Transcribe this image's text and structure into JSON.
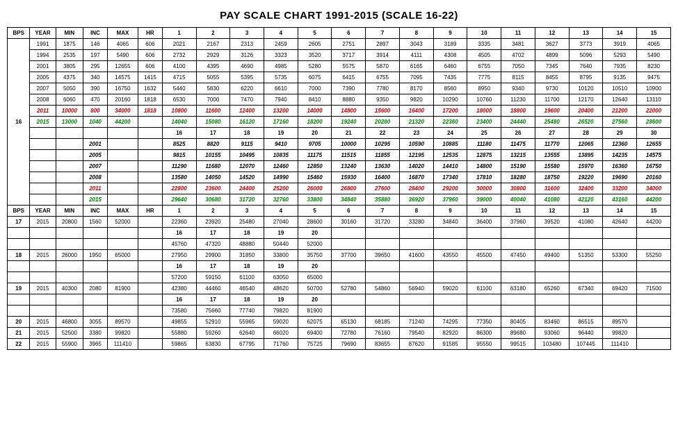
{
  "title": "PAY SCALE CHART  1991-2015   (SCALE 16-22)",
  "headers": [
    "BPS",
    "YEAR",
    "MIN",
    "INC",
    "MAX",
    "HR",
    "1",
    "2",
    "3",
    "4",
    "5",
    "6",
    "7",
    "8",
    "9",
    "10",
    "11",
    "12",
    "13",
    "14",
    "15"
  ],
  "sections": [
    {
      "bps": "16",
      "rowspan": 13,
      "rows": [
        {
          "cells": [
            "1991",
            "1875",
            "146",
            "4065",
            "606",
            "2021",
            "2167",
            "2313",
            "2459",
            "2605",
            "2751",
            "2897",
            "3043",
            "3189",
            "3335",
            "3481",
            "3627",
            "3773",
            "3919",
            "4065"
          ]
        },
        {
          "cells": [
            "1994",
            "2535",
            "197",
            "5490",
            "606",
            "2732",
            "2929",
            "3126",
            "3323",
            "3520",
            "3717",
            "3914",
            "4111",
            "4308",
            "4505",
            "4702",
            "4899",
            "5096",
            "5293",
            "5490"
          ]
        },
        {
          "cells": [
            "2001",
            "3805",
            "295",
            "12655",
            "606",
            "4100",
            "4395",
            "4690",
            "4985",
            "5280",
            "5575",
            "5870",
            "6165",
            "6460",
            "6755",
            "7050",
            "7345",
            "7640",
            "7935",
            "8230"
          ]
        },
        {
          "cells": [
            "2005",
            "4375",
            "340",
            "14575",
            "1415",
            "4715",
            "5055",
            "5395",
            "5735",
            "6075",
            "6415",
            "6755",
            "7095",
            "7435",
            "7775",
            "8115",
            "8455",
            "8795",
            "9135",
            "9475"
          ]
        },
        {
          "cells": [
            "2007",
            "5050",
            "390",
            "16750",
            "1632",
            "5440",
            "5830",
            "6220",
            "6610",
            "7000",
            "7390",
            "7780",
            "8170",
            "8560",
            "8950",
            "9340",
            "9730",
            "10120",
            "10510",
            "10900"
          ]
        },
        {
          "cells": [
            "2008",
            "6060",
            "470",
            "20160",
            "1818",
            "6530",
            "7000",
            "7470",
            "7940",
            "8410",
            "8880",
            "9350",
            "9820",
            "10290",
            "10760",
            "11230",
            "11700",
            "12170",
            "12640",
            "13110"
          ]
        },
        {
          "style": "red",
          "cells": [
            "2011",
            "10000",
            "800",
            "34000",
            "1818",
            "10800",
            "11600",
            "12400",
            "13200",
            "14000",
            "14800",
            "15600",
            "16400",
            "17200",
            "18000",
            "18800",
            "19600",
            "20400",
            "21200",
            "22000"
          ]
        },
        {
          "style": "green",
          "cells": [
            "2015",
            "13000",
            "1040",
            "44200",
            "",
            "14040",
            "15080",
            "16120",
            "17160",
            "18200",
            "19240",
            "20280",
            "21320",
            "22360",
            "23400",
            "24440",
            "25480",
            "26520",
            "27560",
            "28600"
          ]
        },
        {
          "style": "bold",
          "cells": [
            "",
            "",
            "",
            "",
            "",
            "16",
            "17",
            "18",
            "19",
            "20",
            "21",
            "22",
            "23",
            "24",
            "25",
            "26",
            "27",
            "28",
            "29",
            "30"
          ]
        },
        {
          "style": "bolditalic",
          "cells": [
            "",
            "",
            "2001",
            "",
            "",
            "8525",
            "8820",
            "9115",
            "9410",
            "9705",
            "10000",
            "10295",
            "10590",
            "10885",
            "11180",
            "11475",
            "11770",
            "12065",
            "12360",
            "12655"
          ]
        },
        {
          "style": "bolditalic",
          "cells": [
            "",
            "",
            "2005",
            "",
            "",
            "9815",
            "10155",
            "10495",
            "10835",
            "11175",
            "11515",
            "11855",
            "12195",
            "12535",
            "12875",
            "13215",
            "13555",
            "13895",
            "14235",
            "14575"
          ]
        },
        {
          "style": "bolditalic",
          "cells": [
            "",
            "",
            "2007",
            "",
            "",
            "11290",
            "11680",
            "12070",
            "12460",
            "12850",
            "13240",
            "13630",
            "14020",
            "14410",
            "14800",
            "15190",
            "15580",
            "15970",
            "16360",
            "16750"
          ]
        },
        {
          "style": "bolditalic",
          "cells": [
            "",
            "",
            "2008",
            "",
            "",
            "13580",
            "14050",
            "14520",
            "14990",
            "15460",
            "15930",
            "16400",
            "16870",
            "17340",
            "17810",
            "18280",
            "18750",
            "19220",
            "19690",
            "20160"
          ]
        },
        {
          "style": "red",
          "cells": [
            "",
            "",
            "2011",
            "",
            "",
            "22800",
            "23600",
            "24400",
            "25200",
            "26000",
            "26800",
            "27600",
            "28400",
            "29200",
            "30000",
            "30800",
            "31600",
            "32400",
            "33200",
            "34000"
          ]
        },
        {
          "style": "green",
          "cells": [
            "",
            "",
            "2015",
            "",
            "",
            "29640",
            "30680",
            "31720",
            "32760",
            "33800",
            "34840",
            "35880",
            "36920",
            "37960",
            "39000",
            "40040",
            "41080",
            "42120",
            "43160",
            "44200"
          ]
        }
      ]
    }
  ],
  "headers2": [
    "BPS",
    "YEAR",
    "MIN",
    "INC",
    "MAX",
    "HR",
    "1",
    "2",
    "3",
    "4",
    "5",
    "6",
    "7",
    "8",
    "9",
    "10",
    "11",
    "12",
    "13",
    "14",
    "15"
  ],
  "tail": [
    {
      "bps": "17",
      "year": "2015",
      "min": "20800",
      "inc": "1560",
      "max": "52000",
      "hr": "",
      "steps": [
        "22360",
        "23920",
        "25480",
        "27040",
        "28600",
        "30160",
        "31720",
        "33280",
        "34840",
        "36400",
        "37960",
        "39520",
        "41080",
        "42640",
        "44200"
      ]
    },
    {
      "extHeader": [
        "16",
        "17",
        "18",
        "19",
        "20"
      ]
    },
    {
      "ext": [
        "45760",
        "47320",
        "48880",
        "50440",
        "52000"
      ]
    },
    {
      "bps": "18",
      "year": "2015",
      "min": "26000",
      "inc": "1950",
      "max": "65000",
      "hr": "",
      "steps": [
        "27950",
        "29900",
        "31850",
        "33800",
        "35750",
        "37700",
        "39650",
        "41600",
        "43550",
        "45500",
        "47450",
        "49400",
        "51350",
        "53300",
        "55250"
      ]
    },
    {
      "extHeader": [
        "16",
        "17",
        "18",
        "19",
        "20"
      ]
    },
    {
      "ext": [
        "57200",
        "59150",
        "61100",
        "63050",
        "65000"
      ]
    },
    {
      "bps": "19",
      "year": "2015",
      "min": "40300",
      "inc": "2080",
      "max": "81900",
      "hr": "",
      "steps": [
        "42380",
        "44460",
        "46540",
        "48620",
        "50700",
        "52780",
        "54860",
        "56940",
        "59020",
        "61100",
        "63180",
        "65260",
        "67340",
        "69420",
        "71500"
      ]
    },
    {
      "extHeader": [
        "16",
        "17",
        "18",
        "19",
        "20"
      ]
    },
    {
      "ext": [
        "73580",
        "75660",
        "77740",
        "79820",
        "81900"
      ]
    },
    {
      "bps": "20",
      "year": "2015",
      "min": "46800",
      "inc": "3055",
      "max": "89570",
      "hr": "",
      "steps": [
        "49855",
        "52910",
        "55965",
        "59020",
        "62075",
        "65130",
        "68185",
        "71240",
        "74295",
        "77350",
        "80405",
        "83460",
        "86515",
        "89570",
        ""
      ]
    },
    {
      "bps": "21",
      "year": "2015",
      "min": "52500",
      "inc": "3380",
      "max": "99820",
      "hr": "",
      "steps": [
        "55880",
        "59260",
        "62640",
        "66020",
        "69400",
        "72780",
        "76160",
        "79540",
        "82920",
        "86300",
        "89680",
        "93060",
        "96440",
        "99820",
        ""
      ]
    },
    {
      "bps": "22",
      "year": "2015",
      "min": "55900",
      "inc": "3965",
      "max": "111410",
      "hr": "",
      "steps": [
        "59865",
        "63830",
        "67795",
        "71760",
        "75725",
        "79690",
        "83655",
        "87620",
        "91585",
        "95550",
        "99515",
        "103480",
        "107445",
        "111410",
        ""
      ]
    }
  ]
}
